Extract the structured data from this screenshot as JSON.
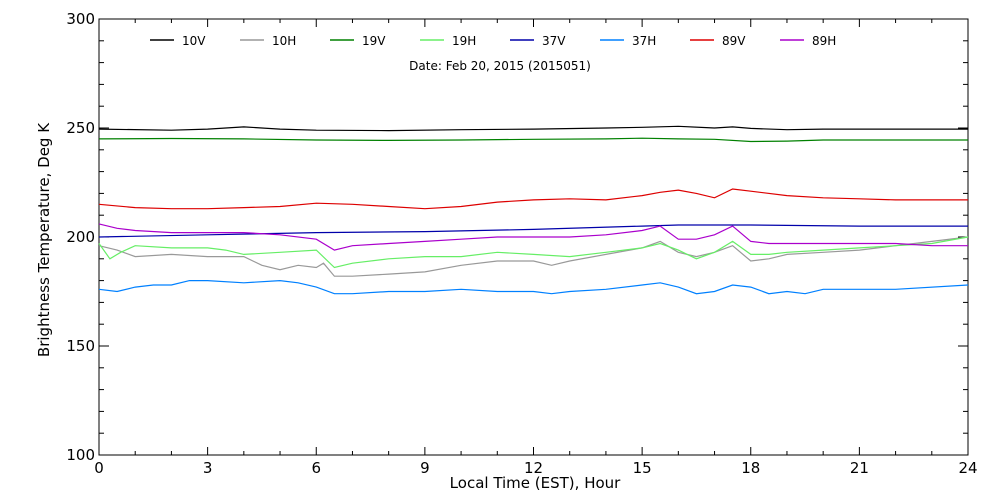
{
  "chart_data": {
    "type": "line",
    "annotation": "Date: Feb 20, 2015 (2015051)",
    "xlabel": "Local Time (EST), Hour",
    "ylabel": "Brightness Temperature, Deg K",
    "xlim": [
      0,
      24
    ],
    "ylim": [
      100,
      300
    ],
    "x_ticks": [
      0,
      3,
      6,
      9,
      12,
      15,
      18,
      21,
      24
    ],
    "y_ticks": [
      100,
      150,
      200,
      250,
      300
    ],
    "grid": false,
    "legend_position": "top",
    "series": [
      {
        "name": "10V",
        "color": "#000000",
        "x": [
          0,
          2,
          3,
          4,
          5,
          6,
          8,
          10,
          12,
          14,
          15,
          16,
          17,
          17.5,
          18,
          19,
          20,
          22,
          24
        ],
        "y": [
          249.5,
          249,
          249.5,
          250.5,
          249.5,
          249,
          248.8,
          249.2,
          249.5,
          250,
          250.3,
          250.8,
          250,
          250.5,
          249.8,
          249.2,
          249.5,
          249.5,
          249.5
        ]
      },
      {
        "name": "10H",
        "color": "#999999",
        "x": [
          0,
          0.5,
          1,
          2,
          3,
          4,
          4.5,
          5,
          5.5,
          6,
          6.2,
          6.5,
          7,
          8,
          9,
          10,
          11,
          12,
          12.5,
          13,
          14,
          15,
          15.5,
          16,
          16.5,
          17,
          17.5,
          18,
          18.5,
          19,
          20,
          21,
          22,
          23,
          24
        ],
        "y": [
          196,
          194,
          191,
          192,
          191,
          191,
          187,
          185,
          187,
          186,
          188,
          182,
          182,
          183,
          184,
          187,
          189,
          189,
          187,
          189,
          192,
          195,
          198,
          193,
          191,
          193,
          196,
          189,
          190,
          192,
          193,
          194,
          196,
          198,
          200
        ]
      },
      {
        "name": "19V",
        "color": "#008000",
        "x": [
          0,
          2,
          4,
          6,
          8,
          10,
          12,
          14,
          15,
          16,
          17,
          18,
          19,
          20,
          22,
          24
        ],
        "y": [
          245,
          245.2,
          245,
          244.5,
          244.3,
          244.5,
          244.8,
          245,
          245.3,
          245,
          244.8,
          243.8,
          244,
          244.5,
          244.5,
          244.5
        ]
      },
      {
        "name": "19H",
        "color": "#66ee66",
        "x": [
          0,
          0.3,
          0.6,
          1,
          2,
          3,
          3.5,
          4,
          5,
          6,
          6.5,
          7,
          8,
          9,
          10,
          11,
          12,
          13,
          14,
          15,
          15.5,
          16,
          16.5,
          17,
          17.5,
          18,
          18.5,
          19,
          20,
          21,
          22,
          23,
          24
        ],
        "y": [
          197,
          190,
          193,
          196,
          195,
          195,
          194,
          192,
          193,
          194,
          186,
          188,
          190,
          191,
          191,
          193,
          192,
          191,
          193,
          195,
          197,
          194,
          190,
          193,
          198,
          192,
          192,
          193,
          194,
          195,
          196,
          197,
          200
        ]
      },
      {
        "name": "37V",
        "color": "#0000aa",
        "x": [
          0,
          3,
          6,
          9,
          12,
          15,
          16,
          17,
          18,
          21,
          24
        ],
        "y": [
          200,
          201,
          202,
          202.5,
          203.5,
          205,
          205.5,
          205.5,
          205.5,
          205,
          205
        ]
      },
      {
        "name": "37H",
        "color": "#0080ff",
        "x": [
          0,
          0.5,
          1,
          1.5,
          2,
          2.5,
          3,
          4,
          5,
          5.5,
          6,
          6.5,
          7,
          8,
          9,
          10,
          11,
          12,
          12.5,
          13,
          14,
          15,
          15.5,
          16,
          16.5,
          17,
          17.5,
          18,
          18.5,
          19,
          19.5,
          20,
          22,
          24
        ],
        "y": [
          176,
          175,
          177,
          178,
          178,
          180,
          180,
          179,
          180,
          179,
          177,
          174,
          174,
          175,
          175,
          176,
          175,
          175,
          174,
          175,
          176,
          178,
          179,
          177,
          174,
          175,
          178,
          177,
          174,
          175,
          174,
          176,
          176,
          178
        ]
      },
      {
        "name": "89V",
        "color": "#dd0000",
        "x": [
          0,
          1,
          2,
          3,
          4,
          5,
          6,
          7,
          8,
          9,
          10,
          11,
          12,
          13,
          14,
          15,
          15.5,
          16,
          16.5,
          17,
          17.5,
          18,
          19,
          20,
          21,
          22,
          24
        ],
        "y": [
          215,
          213.5,
          213,
          213,
          213.5,
          214,
          215.5,
          215,
          214,
          213,
          214,
          216,
          217,
          217.5,
          217,
          219,
          220.5,
          221.5,
          220,
          218,
          222,
          221,
          219,
          218,
          217.5,
          217,
          217
        ]
      },
      {
        "name": "89H",
        "color": "#aa00cc",
        "x": [
          0,
          0.5,
          1,
          2,
          3,
          4,
          5,
          6,
          6.5,
          7,
          8,
          9,
          10,
          11,
          12,
          13,
          14,
          15,
          15.5,
          16,
          16.5,
          17,
          17.5,
          18,
          18.5,
          19,
          20,
          21,
          22,
          23,
          24
        ],
        "y": [
          206,
          204,
          203,
          202,
          202,
          202,
          201,
          199,
          194,
          196,
          197,
          198,
          199,
          200,
          200,
          200,
          201,
          203,
          205,
          199,
          199,
          201,
          205,
          198,
          197,
          197,
          197,
          197,
          197,
          196,
          196
        ]
      }
    ]
  }
}
